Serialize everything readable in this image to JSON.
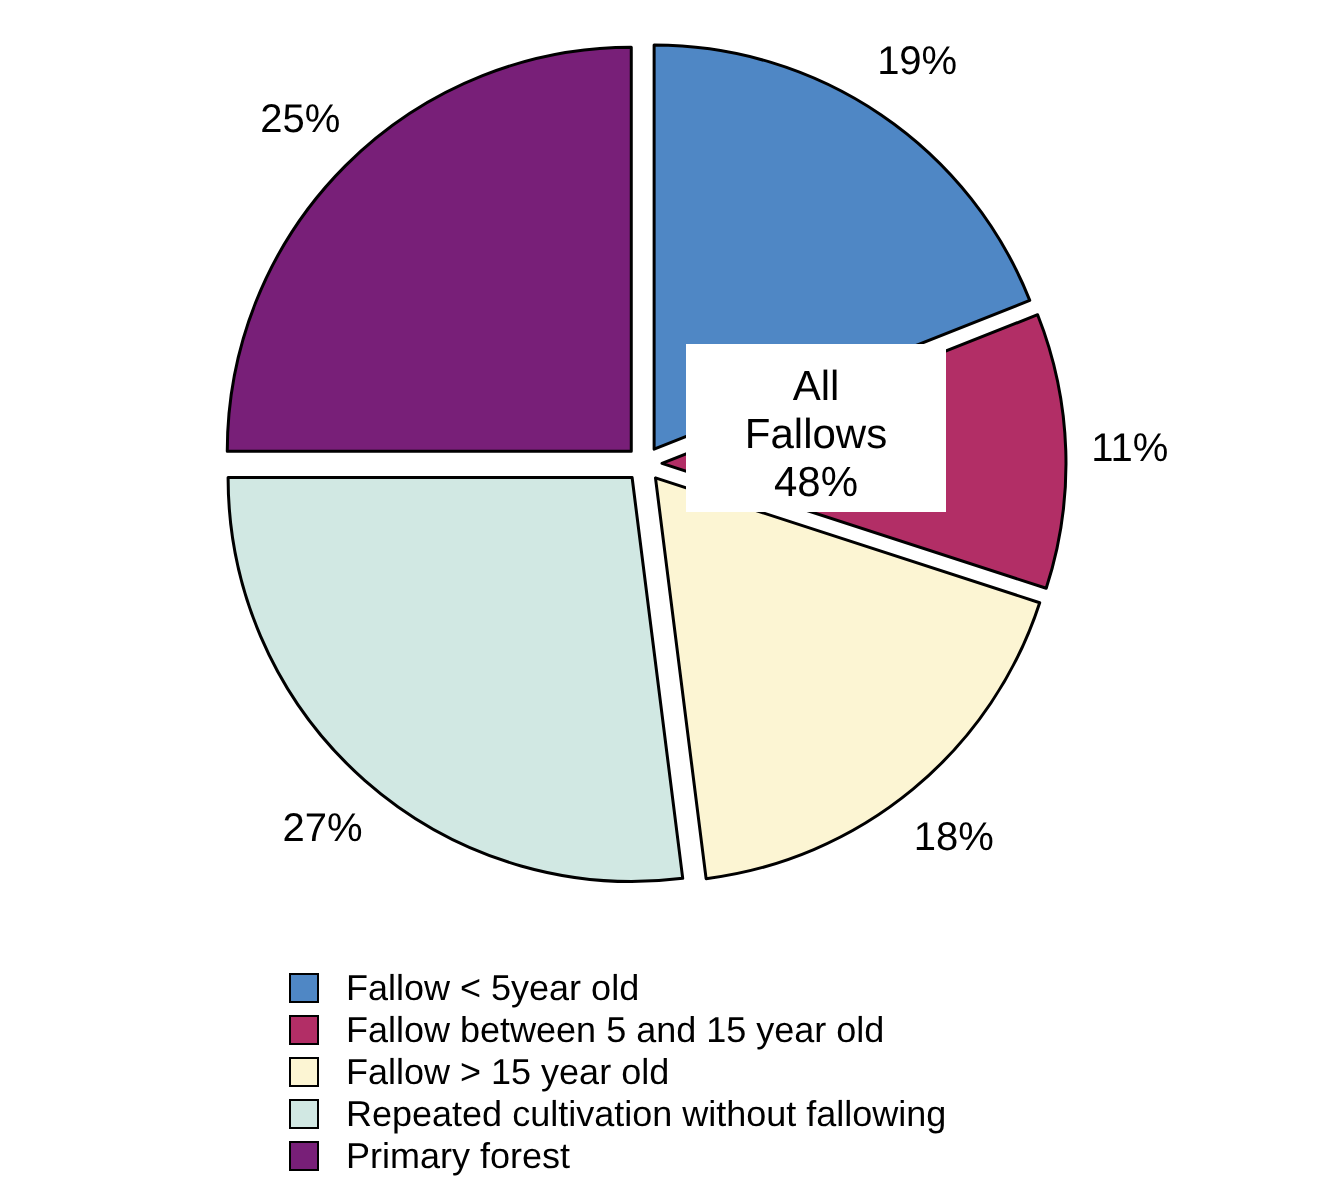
{
  "chart_data": {
    "type": "pie",
    "categories": [
      "Fallow < 5year old",
      "Fallow between 5 and 15 year old",
      "Fallow > 15 year old",
      "Repeated cultivation without fallowing",
      "Primary forest"
    ],
    "values": [
      19,
      11,
      18,
      27,
      25
    ],
    "colors": [
      "#4f87c5",
      "#b22e66",
      "#fcf5d3",
      "#d1e8e3",
      "#781f78"
    ],
    "value_labels": [
      "19%",
      "11%",
      "18%",
      "27%",
      "25%"
    ],
    "annotations": [
      "All Fallows 48%"
    ],
    "legend": "bottom"
  }
}
